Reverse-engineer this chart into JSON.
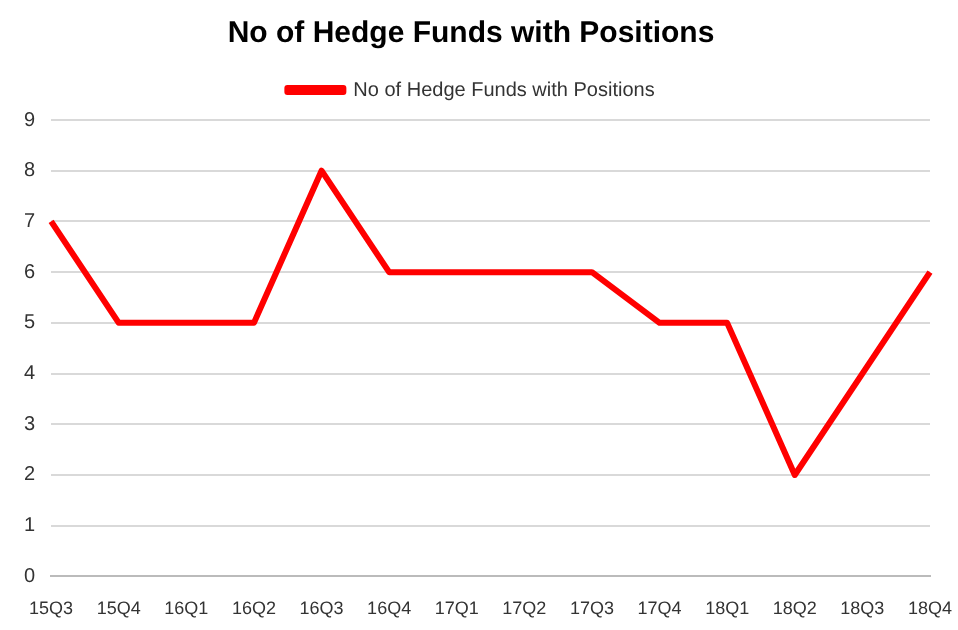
{
  "chart_data": {
    "type": "line",
    "title": "No of Hedge Funds with Positions",
    "categories": [
      "15Q3",
      "15Q4",
      "16Q1",
      "16Q2",
      "16Q3",
      "16Q4",
      "17Q1",
      "17Q2",
      "17Q3",
      "17Q4",
      "18Q1",
      "18Q2",
      "18Q3",
      "18Q4"
    ],
    "series": [
      {
        "name": "No of Hedge Funds with Positions",
        "color": "#ff0000",
        "values": [
          7,
          5,
          5,
          5,
          8,
          6,
          6,
          6,
          6,
          5,
          5,
          2,
          4,
          6
        ]
      }
    ],
    "ylim": [
      0,
      9
    ],
    "yticks": [
      0,
      1,
      2,
      3,
      4,
      5,
      6,
      7,
      8,
      9
    ],
    "grid": "y",
    "legend": "top",
    "marker": "none",
    "line_style": "solid"
  }
}
